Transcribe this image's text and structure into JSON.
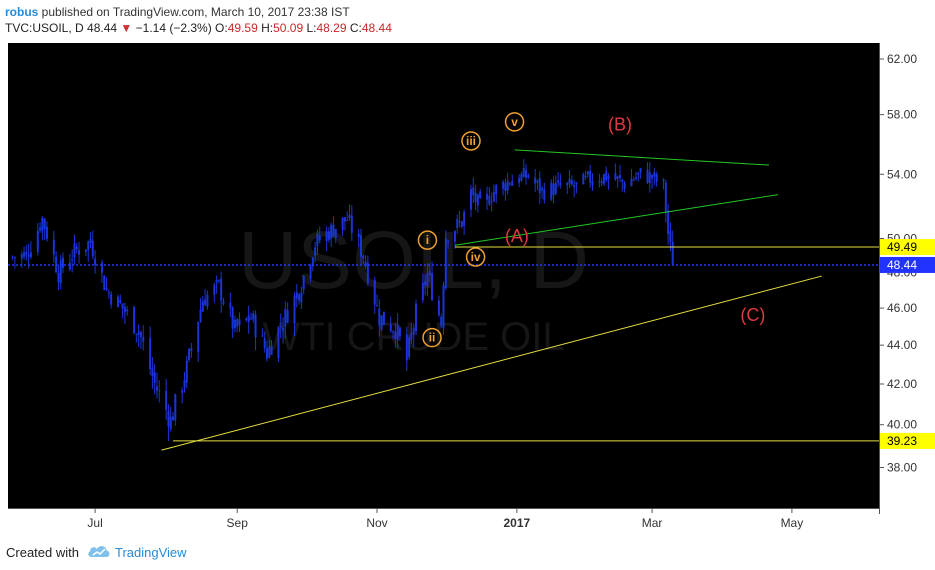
{
  "header": {
    "user": "robus",
    "published": " published on TradingView.com, March 10, 2017 23:38 IST",
    "symbol": "TVC:USOIL, D",
    "last": "48.44",
    "change": "−1.14 (−2.3%)",
    "o_label": "O:",
    "o_val": "49.59",
    "h_label": "H:",
    "h_val": "50.09",
    "l_label": "L:",
    "l_val": "48.29",
    "c_label": "C:",
    "c_val": "48.44"
  },
  "footer": {
    "created_with": "Created with",
    "brand": "TradingView"
  },
  "watermark": {
    "symbol": "USOIL, D",
    "name": "WTI CRUDE OIL"
  },
  "colors": {
    "background": "#000000",
    "candle": "#1a34d8",
    "wave_label": "#f0a030",
    "abc_label": "#e0393e",
    "green_line": "#22c722",
    "yellow_line": "#e6e040",
    "price_line": "#2233ff",
    "axis_text": "#333333",
    "price_tag": "#ffff00"
  },
  "chart_data": {
    "type": "candlestick",
    "symbol": "TVC:USOIL",
    "timeframe": "D",
    "y_ticks": [
      38,
      40,
      42,
      44,
      46,
      48,
      50,
      54,
      58,
      62
    ],
    "y_tick_labels": [
      "38.00",
      "40.00",
      "42.00",
      "44.00",
      "46.00",
      "48.00",
      "50.00",
      "54.00",
      "58.00",
      "62.00"
    ],
    "ylim": [
      36.2,
      63.2
    ],
    "x_ticks": [
      "Jul",
      "Sep",
      "Nov",
      "2017",
      "Mar",
      "May"
    ],
    "x_range": [
      "2016-05-24",
      "2017-06-08"
    ],
    "price_tags": [
      {
        "value": 49.49,
        "label": "49.49",
        "style": "yellow"
      },
      {
        "value": 48.44,
        "label": "48.44",
        "style": "blue"
      },
      {
        "value": 39.23,
        "label": "39.23",
        "style": "yellow"
      }
    ],
    "series": [
      {
        "date": "2016-05-26",
        "close": 48.9
      },
      {
        "date": "2016-06-01",
        "close": 49.0
      },
      {
        "date": "2016-06-08",
        "close": 51.2
      },
      {
        "date": "2016-06-15",
        "close": 48.0
      },
      {
        "date": "2016-06-22",
        "close": 49.2
      },
      {
        "date": "2016-06-29",
        "close": 49.8
      },
      {
        "date": "2016-07-06",
        "close": 47.0
      },
      {
        "date": "2016-07-13",
        "close": 46.0
      },
      {
        "date": "2016-07-20",
        "close": 44.8
      },
      {
        "date": "2016-07-27",
        "close": 42.0
      },
      {
        "date": "2016-08-03",
        "close": 40.2
      },
      {
        "date": "2016-08-10",
        "close": 42.8
      },
      {
        "date": "2016-08-17",
        "close": 46.5
      },
      {
        "date": "2016-08-24",
        "close": 47.2
      },
      {
        "date": "2016-08-31",
        "close": 44.8
      },
      {
        "date": "2016-09-07",
        "close": 45.5
      },
      {
        "date": "2016-09-14",
        "close": 43.6
      },
      {
        "date": "2016-09-21",
        "close": 45.3
      },
      {
        "date": "2016-09-28",
        "close": 47.0
      },
      {
        "date": "2016-10-05",
        "close": 49.7
      },
      {
        "date": "2016-10-12",
        "close": 50.5
      },
      {
        "date": "2016-10-19",
        "close": 51.2
      },
      {
        "date": "2016-10-26",
        "close": 49.0
      },
      {
        "date": "2016-11-02",
        "close": 45.5
      },
      {
        "date": "2016-11-09",
        "close": 44.9
      },
      {
        "date": "2016-11-14",
        "close": 43.2
      },
      {
        "date": "2016-11-18",
        "close": 45.7
      },
      {
        "date": "2016-11-23",
        "close": 47.9
      },
      {
        "date": "2016-11-29",
        "close": 45.2
      },
      {
        "date": "2016-12-01",
        "close": 50.2
      },
      {
        "date": "2016-12-08",
        "close": 51.0
      },
      {
        "date": "2016-12-12",
        "close": 52.8
      },
      {
        "date": "2016-12-16",
        "close": 51.9
      },
      {
        "date": "2016-12-22",
        "close": 52.9
      },
      {
        "date": "2016-12-30",
        "close": 53.7
      },
      {
        "date": "2017-01-06",
        "close": 53.9
      },
      {
        "date": "2017-01-12",
        "close": 52.9
      },
      {
        "date": "2017-01-20",
        "close": 53.2
      },
      {
        "date": "2017-01-27",
        "close": 53.2
      },
      {
        "date": "2017-02-03",
        "close": 53.8
      },
      {
        "date": "2017-02-10",
        "close": 53.9
      },
      {
        "date": "2017-02-17",
        "close": 53.4
      },
      {
        "date": "2017-02-24",
        "close": 54.0
      },
      {
        "date": "2017-03-01",
        "close": 53.8
      },
      {
        "date": "2017-03-06",
        "close": 53.2
      },
      {
        "date": "2017-03-08",
        "close": 50.3
      },
      {
        "date": "2017-03-10",
        "close": 48.44
      }
    ],
    "annotations": {
      "wave_labels": [
        {
          "text": "i",
          "date": "2016-11-23",
          "price": 49.9
        },
        {
          "text": "ii",
          "date": "2016-11-25",
          "price": 44.4
        },
        {
          "text": "iii",
          "date": "2016-12-12",
          "price": 56.2
        },
        {
          "text": "iv",
          "date": "2016-12-14",
          "price": 48.9
        },
        {
          "text": "v",
          "date": "2016-12-31",
          "price": 57.5
        }
      ],
      "abc_labels": [
        {
          "text": "(A)",
          "date": "2017-01-01",
          "price": 49.8
        },
        {
          "text": "(B)",
          "date": "2017-02-15",
          "price": 56.9
        },
        {
          "text": "(C)",
          "date": "2017-04-14",
          "price": 45.3
        }
      ],
      "green_lines": [
        {
          "from": {
            "date": "2016-12-31",
            "price": 55.6
          },
          "to": {
            "date": "2017-04-21",
            "price": 54.6
          }
        },
        {
          "from": {
            "date": "2016-12-05",
            "price": 49.6
          },
          "to": {
            "date": "2017-04-25",
            "price": 52.7
          }
        }
      ],
      "yellow_lines": [
        {
          "from": {
            "date": "2016-12-05",
            "price": 49.49
          },
          "to": {
            "date": "2017-06-08",
            "price": 49.49
          }
        },
        {
          "from": {
            "date": "2016-08-04",
            "price": 39.23
          },
          "to": {
            "date": "2017-06-08",
            "price": 39.23
          }
        },
        {
          "from": {
            "date": "2016-07-30",
            "price": 38.8
          },
          "to": {
            "date": "2017-05-14",
            "price": 47.8
          }
        }
      ]
    }
  }
}
